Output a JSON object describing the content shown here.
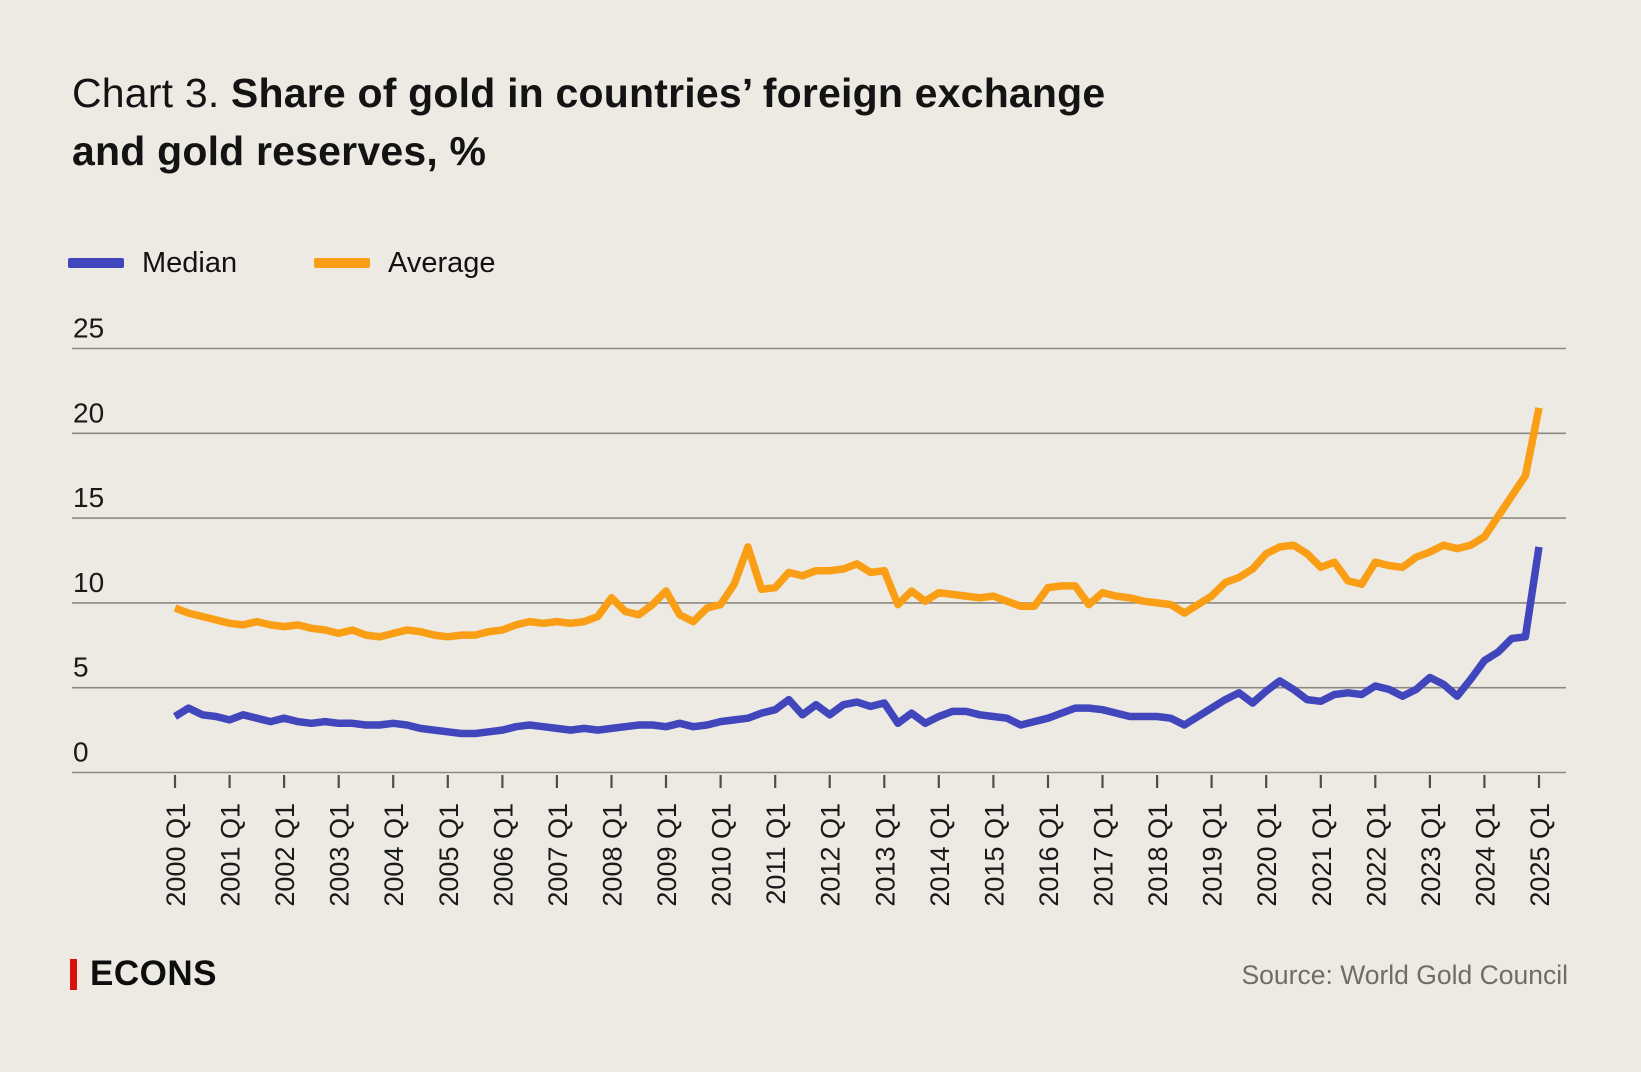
{
  "title": {
    "prefix": "Chart 3.",
    "line1": "Share of gold in countries’ foreign exchange",
    "line2": "and gold reserves, %"
  },
  "legend": [
    {
      "label": "Median",
      "color": "#4146BD"
    },
    {
      "label": "Average",
      "color": "#F99E15"
    }
  ],
  "footer": {
    "logo_text": "ECONS",
    "source": "Source: World Gold Council"
  },
  "colors": {
    "background": "#EDEAE3",
    "gridline": "#8B8981",
    "tick": "#4D4D4D",
    "text": "#1A1A1A",
    "logo_accent_red": "#D9120C",
    "source_text": "#6F6D66"
  },
  "chart_data": {
    "type": "line",
    "title": "Chart 3. Share of gold in countries’ foreign exchange and gold reserves, %",
    "unit": "%",
    "x_frequency": "quarterly",
    "x_range": [
      "2000 Q1",
      "2025 Q1"
    ],
    "x_tick_labels": [
      "2000 Q1",
      "2001 Q1",
      "2002 Q1",
      "2003 Q1",
      "2004 Q1",
      "2005 Q1",
      "2006 Q1",
      "2007 Q1",
      "2008 Q1",
      "2009 Q1",
      "2010 Q1",
      "2011 Q1",
      "2012 Q1",
      "2013 Q1",
      "2014 Q1",
      "2015 Q1",
      "2016 Q1",
      "2017 Q1",
      "2018 Q1",
      "2019 Q1",
      "2020 Q1",
      "2021 Q1",
      "2022 Q1",
      "2023 Q1",
      "2024 Q1",
      "2025 Q1"
    ],
    "ylim": [
      0,
      25
    ],
    "yticks": [
      0,
      5,
      10,
      15,
      20,
      25
    ],
    "grid": "horizontal",
    "legend_position": "top-left",
    "series": [
      {
        "name": "Median",
        "color": "#4146BD",
        "values": [
          3.3,
          3.8,
          3.4,
          3.3,
          3.1,
          3.4,
          3.2,
          3.0,
          3.2,
          3.0,
          2.9,
          3.0,
          2.9,
          2.9,
          2.8,
          2.8,
          2.9,
          2.8,
          2.6,
          2.5,
          2.4,
          2.3,
          2.3,
          2.4,
          2.5,
          2.7,
          2.8,
          2.7,
          2.6,
          2.5,
          2.6,
          2.5,
          2.6,
          2.7,
          2.8,
          2.8,
          2.7,
          2.9,
          2.7,
          2.8,
          3.0,
          3.1,
          3.2,
          3.5,
          3.7,
          4.3,
          3.4,
          4.0,
          3.4,
          4.0,
          4.15,
          3.9,
          4.1,
          2.9,
          3.5,
          2.9,
          3.3,
          3.6,
          3.6,
          3.4,
          3.3,
          3.2,
          2.8,
          3.0,
          3.2,
          3.5,
          3.8,
          3.8,
          3.7,
          3.5,
          3.3,
          3.3,
          3.3,
          3.2,
          2.8,
          3.3,
          3.8,
          4.3,
          4.7,
          4.1,
          4.8,
          5.4,
          4.9,
          4.3,
          4.2,
          4.6,
          4.7,
          4.6,
          5.1,
          4.9,
          4.5,
          4.9,
          5.6,
          5.2,
          4.5,
          5.5,
          6.6,
          7.1,
          7.9,
          8.0,
          13.3
        ]
      },
      {
        "name": "Average",
        "color": "#F99E15",
        "values": [
          9.7,
          9.4,
          9.2,
          9.0,
          8.8,
          8.7,
          8.9,
          8.7,
          8.6,
          8.7,
          8.5,
          8.4,
          8.2,
          8.4,
          8.1,
          8.0,
          8.2,
          8.4,
          8.3,
          8.1,
          8.0,
          8.1,
          8.1,
          8.3,
          8.4,
          8.7,
          8.9,
          8.8,
          8.9,
          8.8,
          8.9,
          9.2,
          10.3,
          9.5,
          9.3,
          9.9,
          10.7,
          9.3,
          8.9,
          9.7,
          9.9,
          11.1,
          13.3,
          10.8,
          10.9,
          11.8,
          11.6,
          11.9,
          11.9,
          12.0,
          12.3,
          11.8,
          11.9,
          9.9,
          10.7,
          10.1,
          10.6,
          10.5,
          10.4,
          10.3,
          10.4,
          10.1,
          9.8,
          9.8,
          10.9,
          11.0,
          11.0,
          9.9,
          10.6,
          10.4,
          10.3,
          10.1,
          10.0,
          9.9,
          9.4,
          9.9,
          10.4,
          11.2,
          11.5,
          12.0,
          12.9,
          13.3,
          13.4,
          12.9,
          12.1,
          12.4,
          11.3,
          11.1,
          12.4,
          12.2,
          12.1,
          12.7,
          13.0,
          13.4,
          13.2,
          13.4,
          13.9,
          15.1,
          16.3,
          17.5,
          21.5
        ]
      }
    ]
  }
}
